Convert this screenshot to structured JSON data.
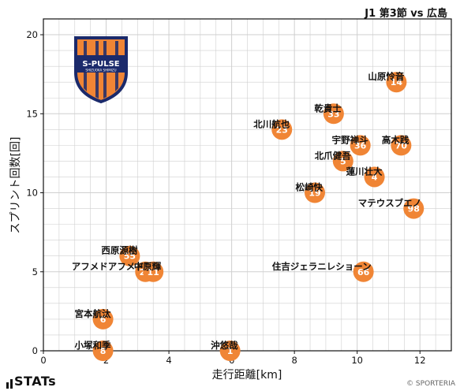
{
  "header": {
    "title": "J1 第3節 vs 広島"
  },
  "brand": {
    "stats_logo_text": "STATs",
    "copyright": "© SPORTERIA",
    "team_logo_text": "S-PULSE",
    "team_logo_subtext": "SHIZUOKA SHIMIZU"
  },
  "colors": {
    "point": "#F08535",
    "grid": "#cfcfcf",
    "axis": "#111111",
    "logo_navy": "#1b2a6b",
    "logo_orange": "#f08535"
  },
  "chart_data": {
    "type": "scatter",
    "xlabel": "走行距離[km]",
    "ylabel": "スプリント回数[回]",
    "xlim": [
      0,
      13
    ],
    "ylim": [
      0,
      21
    ],
    "xticks": [
      0,
      2,
      4,
      6,
      8,
      10,
      12
    ],
    "yticks": [
      0,
      5,
      10,
      15,
      20
    ],
    "grid": true,
    "points": [
      {
        "number": "14",
        "name": "山原怜音",
        "x": 11.25,
        "y": 17
      },
      {
        "number": "33",
        "name": "乾貴士",
        "x": 9.25,
        "y": 15
      },
      {
        "number": "23",
        "name": "北川航也",
        "x": 7.6,
        "y": 14
      },
      {
        "number": "36",
        "name": "宇野禅斗",
        "x": 10.1,
        "y": 13
      },
      {
        "number": "70",
        "name": "高木践",
        "x": 11.4,
        "y": 13
      },
      {
        "number": "5",
        "name": "北爪健吾",
        "x": 9.55,
        "y": 12
      },
      {
        "number": "4",
        "name": "蓮川壮大",
        "x": 10.55,
        "y": 11
      },
      {
        "number": "19",
        "name": "松崎快",
        "x": 8.65,
        "y": 10
      },
      {
        "number": "98",
        "name": "マテウスブエノ",
        "x": 11.8,
        "y": 9
      },
      {
        "number": "55",
        "name": "西原源樹",
        "x": 2.75,
        "y": 6
      },
      {
        "number": "29",
        "name": "アフメドアフメドフ",
        "x": 3.25,
        "y": 5
      },
      {
        "number": "11",
        "name": "中原輝",
        "x": 3.5,
        "y": 5
      },
      {
        "number": "66",
        "name": "住吉ジェラニレショーン",
        "x": 10.2,
        "y": 5
      },
      {
        "number": "6",
        "name": "宮本航汰",
        "x": 1.9,
        "y": 2
      },
      {
        "number": "8",
        "name": "小塚和季",
        "x": 1.9,
        "y": 0
      },
      {
        "number": "1",
        "name": "沖悠哉",
        "x": 5.95,
        "y": 0
      }
    ]
  }
}
